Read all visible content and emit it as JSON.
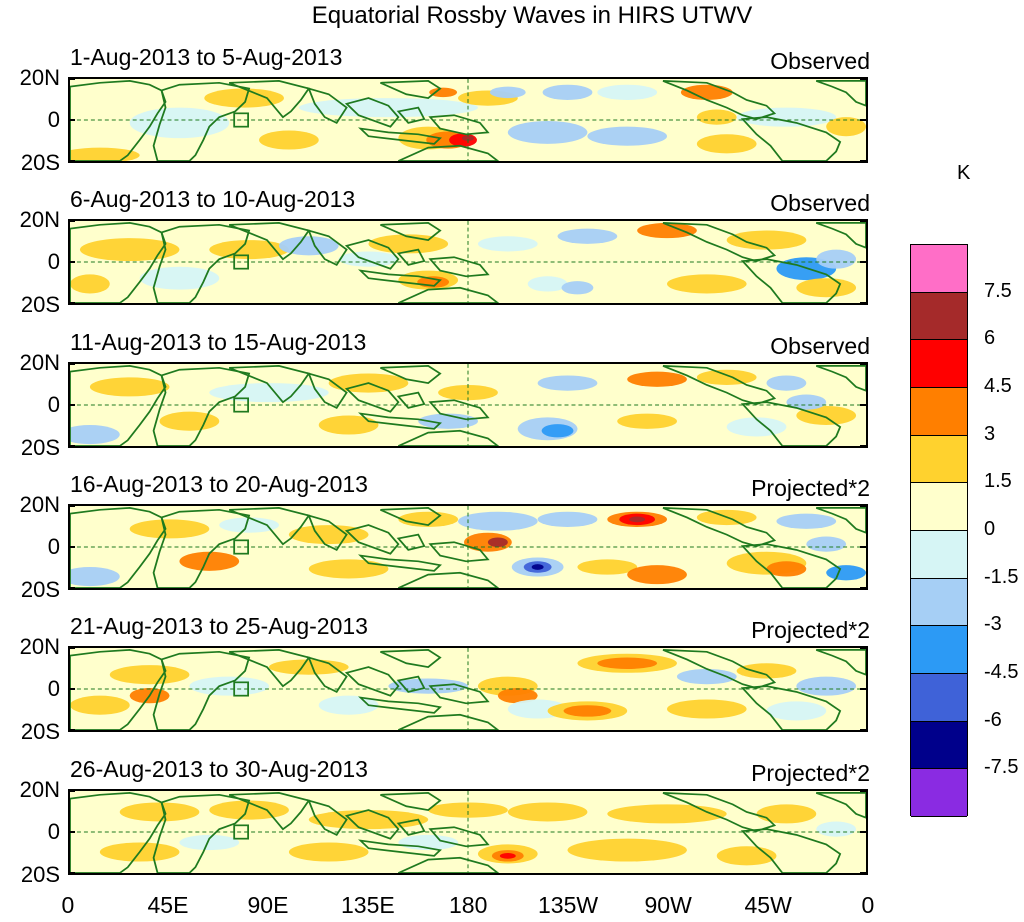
{
  "title": "Equatorial Rossby Waves in HIRS UTWV",
  "unit": "K",
  "latitude_labels": [
    "20N",
    "0",
    "20S"
  ],
  "longitude_labels": [
    "0",
    "45E",
    "90E",
    "135E",
    "180",
    "135W",
    "90W",
    "45W",
    "0"
  ],
  "panels": [
    {
      "date_range": "1-Aug-2013 to 5-Aug-2013",
      "kind": "Observed"
    },
    {
      "date_range": "6-Aug-2013 to 10-Aug-2013",
      "kind": "Observed"
    },
    {
      "date_range": "11-Aug-2013 to 15-Aug-2013",
      "kind": "Observed"
    },
    {
      "date_range": "16-Aug-2013 to 20-Aug-2013",
      "kind": "Projected*2"
    },
    {
      "date_range": "21-Aug-2013 to 25-Aug-2013",
      "kind": "Projected*2"
    },
    {
      "date_range": "26-Aug-2013 to 30-Aug-2013",
      "kind": "Projected*2"
    }
  ],
  "colorbar": {
    "levels": [
      "7.5",
      "6",
      "4.5",
      "3",
      "1.5",
      "0",
      "-1.5",
      "-3",
      "-4.5",
      "-6",
      "-7.5"
    ],
    "colors": [
      "#ff6ec7",
      "#a52a2a",
      "#ff0000",
      "#ff7f00",
      "#ffd22e",
      "#ffffcc",
      "#d6f5f5",
      "#a6cff5",
      "#2c9af5",
      "#3f62d8",
      "#00008b",
      "#8a2be2"
    ]
  },
  "map_colors": {
    "coast": "#1f7a1f",
    "equator_line": "#1f7a1f",
    "dateline": "#1f7a1f"
  }
}
